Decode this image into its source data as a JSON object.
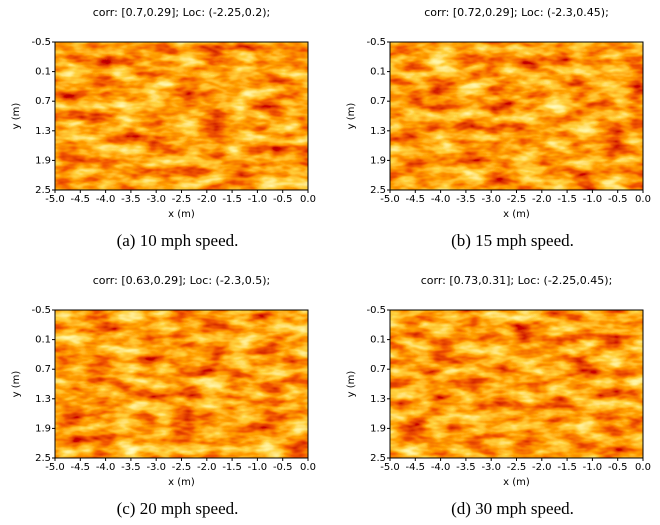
{
  "chart_data": [
    {
      "type": "heatmap",
      "title": "corr: [0.7,0.29]; Loc: (-2.25,0.2);",
      "xlabel": "x (m)",
      "ylabel": "y (m)",
      "caption": "(a) 10 mph speed.",
      "xlim": [
        -5,
        0
      ],
      "ylim": [
        2.5,
        -0.5
      ],
      "xticks": [
        {
          "value": -5,
          "label": "-5.0"
        },
        -4.5,
        {
          "value": -4,
          "label": "-4.0"
        },
        -3.5,
        {
          "value": -3,
          "label": "-3.0"
        },
        -2.5,
        {
          "value": -2,
          "label": "-2.0"
        },
        -1.5,
        {
          "value": -1,
          "label": "-1.0"
        },
        -0.5,
        {
          "value": 0,
          "label": "0.0"
        }
      ],
      "yticks": [
        -0.5,
        0.1,
        0.7,
        1.3,
        1.9,
        2.5
      ]
    },
    {
      "type": "heatmap",
      "title": "corr: [0.72,0.29]; Loc: (-2.3,0.45);",
      "xlabel": "x (m)",
      "ylabel": "y (m)",
      "caption": "(b) 15 mph speed.",
      "xlim": [
        -5,
        0
      ],
      "ylim": [
        2.5,
        -0.5
      ],
      "xticks": [
        {
          "value": -5,
          "label": "-5.0"
        },
        -4.5,
        {
          "value": -4,
          "label": "-4.0"
        },
        -3.5,
        {
          "value": -3,
          "label": "-3.0"
        },
        -2.5,
        {
          "value": -2,
          "label": "-2.0"
        },
        -1.5,
        {
          "value": -1,
          "label": "-1.0"
        },
        -0.5,
        {
          "value": 0,
          "label": "0.0"
        }
      ],
      "yticks": [
        -0.5,
        0.1,
        0.7,
        1.3,
        1.9,
        2.5
      ]
    },
    {
      "type": "heatmap",
      "title": "corr: [0.63,0.29]; Loc: (-2.3,0.5);",
      "xlabel": "x (m)",
      "ylabel": "y (m)",
      "caption": "(c) 20 mph speed.",
      "xlim": [
        -5,
        0
      ],
      "ylim": [
        2.5,
        -0.5
      ],
      "xticks": [
        {
          "value": -5,
          "label": "-5.0"
        },
        -4.5,
        {
          "value": -4,
          "label": "-4.0"
        },
        -3.5,
        {
          "value": -3,
          "label": "-3.0"
        },
        -2.5,
        {
          "value": -2,
          "label": "-2.0"
        },
        -1.5,
        {
          "value": -1,
          "label": "-1.0"
        },
        -0.5,
        {
          "value": 0,
          "label": "0.0"
        }
      ],
      "yticks": [
        -0.5,
        0.1,
        0.7,
        1.3,
        1.9,
        2.5
      ]
    },
    {
      "type": "heatmap",
      "title": "corr: [0.73,0.31]; Loc: (-2.25,0.45);",
      "xlabel": "x (m)",
      "ylabel": "y (m)",
      "caption": "(d) 30 mph speed.",
      "xlim": [
        -5,
        0
      ],
      "ylim": [
        2.5,
        -0.5
      ],
      "xticks": [
        {
          "value": -5,
          "label": "-5.0"
        },
        -4.5,
        {
          "value": -4,
          "label": "-4.0"
        },
        -3.5,
        {
          "value": -3,
          "label": "-3.0"
        },
        -2.5,
        {
          "value": -2,
          "label": "-2.0"
        },
        -1.5,
        {
          "value": -1,
          "label": "-1.0"
        },
        -0.5,
        {
          "value": 0,
          "label": "0.0"
        }
      ],
      "yticks": [
        -0.5,
        0.1,
        0.7,
        1.3,
        1.9,
        2.5
      ]
    }
  ]
}
